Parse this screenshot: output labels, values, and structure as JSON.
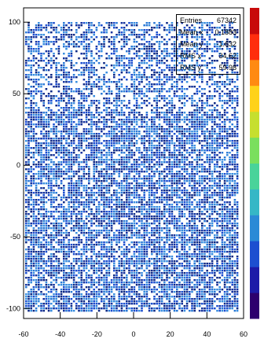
{
  "chart_data": {
    "type": "heatmap",
    "title": "",
    "xlabel": "",
    "ylabel": "",
    "xlim": [
      -60,
      60
    ],
    "ylim": [
      -107,
      110
    ],
    "x_ticks": [
      "-60",
      "-40",
      "-20",
      "0",
      "20",
      "40",
      "60"
    ],
    "y_ticks": [
      "100",
      "50",
      "0",
      "-50",
      "-100"
    ],
    "colorbar": [
      "#2d006e",
      "#1d1ba8",
      "#1d4fd0",
      "#2b8ad6",
      "#35b7c6",
      "#49d39a",
      "#7adf5e",
      "#c6df2f",
      "#ffd21a",
      "#ff8a12",
      "#ff2d0d",
      "#c80a0a"
    ],
    "cell_colors": [
      "#16349f",
      "#1d4fd0",
      "#2b7ad6",
      "#0e2a86",
      "#3a8fe0"
    ],
    "stats": {
      "entries_label": "Entries",
      "entries_value": "67342",
      "rows": [
        {
          "label": "Mean x",
          "value": "0.1883"
        },
        {
          "label": "Mean y",
          "value": "-1.632"
        },
        {
          "label": "RMS x",
          "value": "34.62"
        },
        {
          "label": "RMS y",
          "value": "59.98"
        }
      ]
    }
  }
}
